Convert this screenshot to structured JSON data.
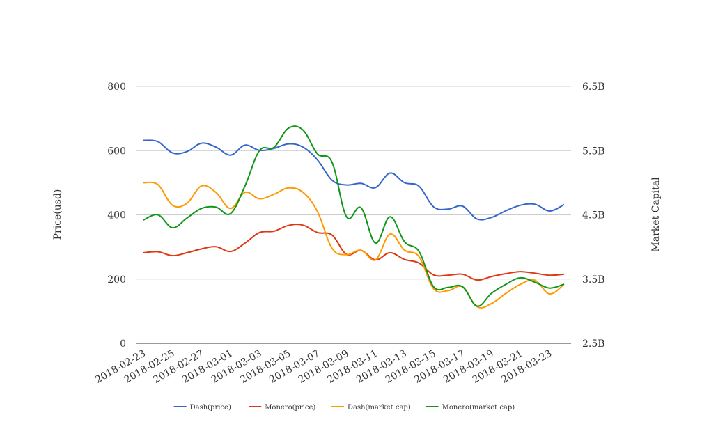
{
  "chart_data": {
    "type": "line",
    "title": "",
    "x": [
      "2018-02-23",
      "2018-02-24",
      "2018-02-25",
      "2018-02-26",
      "2018-02-27",
      "2018-02-28",
      "2018-03-01",
      "2018-03-02",
      "2018-03-03",
      "2018-03-04",
      "2018-03-05",
      "2018-03-06",
      "2018-03-07",
      "2018-03-08",
      "2018-03-09",
      "2018-03-10",
      "2018-03-11",
      "2018-03-12",
      "2018-03-13",
      "2018-03-14",
      "2018-03-15",
      "2018-03-16",
      "2018-03-17",
      "2018-03-18",
      "2018-03-19",
      "2018-03-20",
      "2018-03-21",
      "2018-03-22",
      "2018-03-23",
      "2018-03-24"
    ],
    "x_tick_labels": [
      "2018-02-23",
      "2018-02-25",
      "2018-02-27",
      "2018-03-01",
      "2018-03-03",
      "2018-03-05",
      "2018-03-07",
      "2018-03-09",
      "2018-03-11",
      "2018-03-13",
      "2018-03-15",
      "2018-03-17",
      "2018-03-19",
      "2018-03-21",
      "2018-03-23"
    ],
    "y_left": {
      "label": "Price(usd)",
      "ticks": [
        "0",
        "200",
        "400",
        "600",
        "800"
      ],
      "range": [
        0,
        800
      ]
    },
    "y_right": {
      "label": "Market Capital",
      "ticks": [
        "2.5B",
        "3.5B",
        "4.5B",
        "5.5B",
        "6.5B"
      ],
      "range": [
        2.5,
        6.5
      ],
      "unit": "B"
    },
    "grid": true,
    "legend_position": "bottom",
    "series": [
      {
        "name": "Dash(price)",
        "axis": "left",
        "color": "#3366cc",
        "values": [
          632,
          628,
          593,
          597,
          623,
          611,
          586,
          617,
          601,
          607,
          621,
          611,
          571,
          508,
          493,
          498,
          485,
          530,
          500,
          489,
          425,
          418,
          427,
          387,
          392,
          413,
          430,
          433,
          412,
          432
        ]
      },
      {
        "name": "Monero(price)",
        "axis": "left",
        "color": "#dc3912",
        "values": [
          282,
          285,
          273,
          282,
          294,
          301,
          286,
          312,
          345,
          349,
          367,
          368,
          345,
          337,
          277,
          289,
          260,
          282,
          261,
          250,
          213,
          212,
          215,
          197,
          208,
          217,
          223,
          218,
          212,
          215
        ]
      },
      {
        "name": "Dash(market cap)",
        "axis": "right",
        "color": "#ff9900",
        "values": [
          5.0,
          4.97,
          4.65,
          4.68,
          4.95,
          4.85,
          4.6,
          4.85,
          4.75,
          4.82,
          4.92,
          4.85,
          4.55,
          3.98,
          3.88,
          3.95,
          3.8,
          4.2,
          3.95,
          3.85,
          3.35,
          3.32,
          3.38,
          3.07,
          3.12,
          3.28,
          3.42,
          3.48,
          3.27,
          3.42
        ]
      },
      {
        "name": "Monero(market cap)",
        "axis": "right",
        "color": "#109618",
        "values": [
          4.42,
          4.5,
          4.3,
          4.45,
          4.6,
          4.62,
          4.52,
          4.95,
          5.5,
          5.55,
          5.85,
          5.82,
          5.45,
          5.32,
          4.47,
          4.61,
          4.06,
          4.47,
          4.08,
          3.93,
          3.38,
          3.37,
          3.38,
          3.08,
          3.28,
          3.42,
          3.52,
          3.45,
          3.36,
          3.42
        ]
      }
    ]
  }
}
